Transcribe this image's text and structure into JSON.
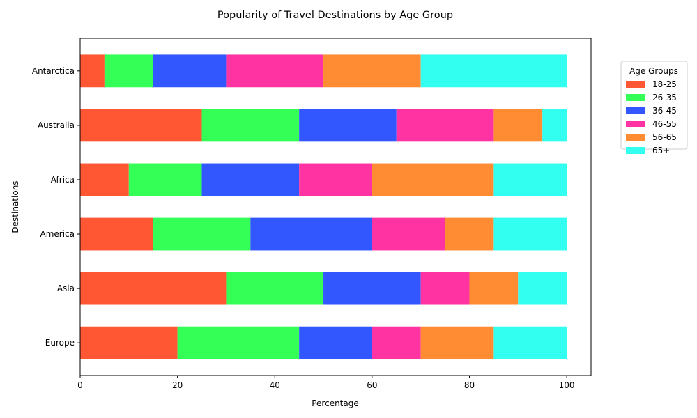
{
  "chart_data": {
    "type": "bar",
    "orientation": "horizontal",
    "stacked": true,
    "title": "Popularity of Travel Destinations by Age Group",
    "xlabel": "Percentage",
    "ylabel": "Destinations",
    "xlim": [
      0,
      105
    ],
    "xticks": [
      0,
      20,
      40,
      60,
      80,
      100
    ],
    "grid": false,
    "categories": [
      "Europe",
      "Asia",
      "America",
      "Africa",
      "Australia",
      "Antarctica"
    ],
    "series": [
      {
        "name": "18-25",
        "color": "#ff5733",
        "values": [
          20,
          30,
          15,
          10,
          25,
          5
        ]
      },
      {
        "name": "26-35",
        "color": "#33ff57",
        "values": [
          25,
          20,
          20,
          15,
          20,
          10
        ]
      },
      {
        "name": "36-45",
        "color": "#3357ff",
        "values": [
          15,
          20,
          25,
          20,
          20,
          15
        ]
      },
      {
        "name": "46-55",
        "color": "#ff33a1",
        "values": [
          10,
          10,
          15,
          15,
          20,
          20
        ]
      },
      {
        "name": "56-65",
        "color": "#ff8c33",
        "values": [
          15,
          10,
          10,
          25,
          10,
          20
        ]
      },
      {
        "name": "65+",
        "color": "#33fff0",
        "values": [
          15,
          10,
          15,
          15,
          5,
          30
        ]
      }
    ],
    "legend": {
      "title": "Age Groups",
      "placement": "outside-top-right"
    }
  }
}
